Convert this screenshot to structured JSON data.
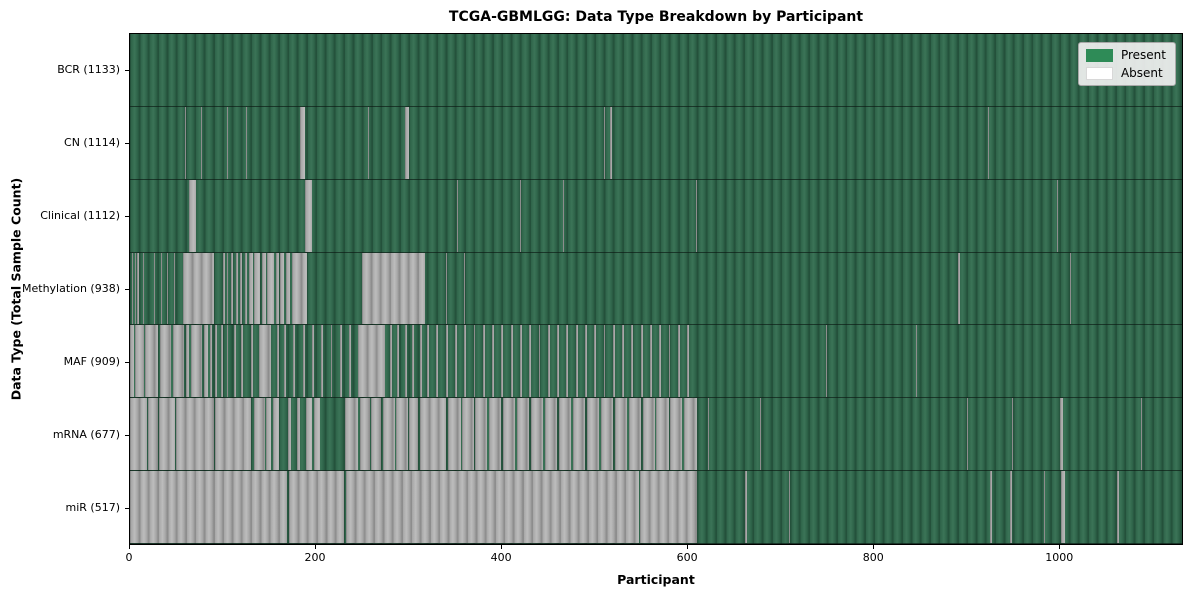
{
  "title": "TCGA-GBMLGG: Data Type Breakdown by Participant",
  "xlabel": "Participant",
  "ylabel": "Data Type (Total Sample Count)",
  "legend": {
    "present_label": "Present",
    "absent_label": "Absent"
  },
  "colors": {
    "present": "#2e6349",
    "present_edge": "#24513b",
    "present_light": "#3b7457",
    "absent": "#a6a6a6",
    "absent_edge": "#8d8d8d",
    "absent_light": "#bdbdbd",
    "legend_present": "#2e8b57",
    "legend_absent": "#ffffff"
  },
  "chart_data": {
    "type": "heatmap",
    "description": "Presence/absence matrix: one column per participant (0-1133), one row per data type. Green = Present, gray/white = Absent. Row labels show total sample count per data type.",
    "x_max": 1133,
    "x_ticks": [
      0,
      200,
      400,
      600,
      800,
      1000
    ],
    "legend_entries": [
      "Present",
      "Absent"
    ],
    "rows": [
      {
        "label": "BCR (1133)",
        "data_type": "BCR",
        "present_count": 1133,
        "absent_segments": []
      },
      {
        "label": "CN (1114)",
        "data_type": "CN",
        "present_count": 1114,
        "absent_segments": [
          [
            59,
            60
          ],
          [
            77,
            78
          ],
          [
            105,
            106
          ],
          [
            125,
            126
          ],
          [
            183,
            188
          ],
          [
            256,
            257
          ],
          [
            296,
            301
          ],
          [
            510,
            512
          ],
          [
            517,
            519
          ],
          [
            924,
            925
          ]
        ]
      },
      {
        "label": "Clinical (1112)",
        "data_type": "Clinical",
        "present_count": 1112,
        "absent_segments": [
          [
            64,
            71
          ],
          [
            188,
            196
          ],
          [
            352,
            353
          ],
          [
            420,
            421
          ],
          [
            466,
            467
          ],
          [
            510,
            511
          ],
          [
            610,
            611
          ],
          [
            998,
            1000
          ]
        ]
      },
      {
        "label": "Methylation (938)",
        "data_type": "Methylation",
        "present_count": 938,
        "absent_segments": [
          [
            2,
            3
          ],
          [
            5,
            6
          ],
          [
            8,
            10
          ],
          [
            14,
            15
          ],
          [
            20,
            21
          ],
          [
            26,
            27
          ],
          [
            33,
            34
          ],
          [
            40,
            41
          ],
          [
            47,
            48
          ],
          [
            57,
            90
          ],
          [
            100,
            102
          ],
          [
            104,
            106
          ],
          [
            109,
            111
          ],
          [
            114,
            116
          ],
          [
            119,
            121
          ],
          [
            124,
            126
          ],
          [
            128,
            132
          ],
          [
            134,
            140
          ],
          [
            142,
            146
          ],
          [
            148,
            155
          ],
          [
            157,
            160
          ],
          [
            162,
            166
          ],
          [
            168,
            172
          ],
          [
            174,
            191
          ],
          [
            250,
            318
          ],
          [
            340,
            341
          ],
          [
            360,
            361
          ],
          [
            892,
            894
          ],
          [
            1012,
            1013
          ]
        ]
      },
      {
        "label": "MAF (909)",
        "data_type": "MAF",
        "present_count": 909,
        "absent_segments": [
          [
            0,
            4
          ],
          [
            5,
            15
          ],
          [
            16,
            30
          ],
          [
            32,
            44
          ],
          [
            46,
            58
          ],
          [
            60,
            64
          ],
          [
            66,
            78
          ],
          [
            80,
            84
          ],
          [
            86,
            88
          ],
          [
            92,
            94
          ],
          [
            98,
            100
          ],
          [
            104,
            106
          ],
          [
            112,
            114
          ],
          [
            120,
            122
          ],
          [
            130,
            132
          ],
          [
            139,
            152
          ],
          [
            158,
            160
          ],
          [
            166,
            168
          ],
          [
            176,
            178
          ],
          [
            186,
            188
          ],
          [
            196,
            198
          ],
          [
            206,
            208
          ],
          [
            216,
            218
          ],
          [
            226,
            228
          ],
          [
            236,
            238
          ],
          [
            246,
            275
          ],
          [
            280,
            282
          ],
          [
            288,
            290
          ],
          [
            296,
            298
          ],
          [
            304,
            306
          ],
          [
            312,
            314
          ],
          [
            320,
            322
          ],
          [
            330,
            332
          ],
          [
            340,
            342
          ],
          [
            350,
            352
          ],
          [
            360,
            362
          ],
          [
            370,
            372
          ],
          [
            380,
            382
          ],
          [
            390,
            392
          ],
          [
            400,
            402
          ],
          [
            410,
            412
          ],
          [
            420,
            422
          ],
          [
            430,
            432
          ],
          [
            440,
            442
          ],
          [
            450,
            452
          ],
          [
            460,
            462
          ],
          [
            470,
            472
          ],
          [
            480,
            482
          ],
          [
            490,
            492
          ],
          [
            500,
            502
          ],
          [
            510,
            512
          ],
          [
            520,
            522
          ],
          [
            530,
            532
          ],
          [
            540,
            542
          ],
          [
            550,
            552
          ],
          [
            560,
            562
          ],
          [
            570,
            572
          ],
          [
            580,
            582
          ],
          [
            590,
            592
          ],
          [
            600,
            602
          ],
          [
            750,
            751
          ],
          [
            846,
            848
          ]
        ]
      },
      {
        "label": "mRNA (677)",
        "data_type": "mRNA",
        "present_count": 677,
        "absent_segments": [
          [
            0,
            18
          ],
          [
            19,
            30
          ],
          [
            31,
            48
          ],
          [
            50,
            90
          ],
          [
            92,
            130
          ],
          [
            134,
            145
          ],
          [
            147,
            152
          ],
          [
            154,
            160
          ],
          [
            170,
            173
          ],
          [
            180,
            183
          ],
          [
            190,
            196
          ],
          [
            198,
            205
          ],
          [
            232,
            246
          ],
          [
            248,
            258
          ],
          [
            260,
            270
          ],
          [
            272,
            285
          ],
          [
            287,
            299
          ],
          [
            301,
            310
          ],
          [
            312,
            340
          ],
          [
            342,
            356
          ],
          [
            358,
            370
          ],
          [
            372,
            385
          ],
          [
            387,
            400
          ],
          [
            402,
            415
          ],
          [
            417,
            430
          ],
          [
            432,
            445
          ],
          [
            447,
            460
          ],
          [
            462,
            475
          ],
          [
            477,
            490
          ],
          [
            492,
            505
          ],
          [
            507,
            520
          ],
          [
            522,
            535
          ],
          [
            537,
            550
          ],
          [
            552,
            565
          ],
          [
            567,
            580
          ],
          [
            582,
            595
          ],
          [
            597,
            611
          ],
          [
            623,
            624
          ],
          [
            679,
            680
          ],
          [
            901,
            902
          ],
          [
            950,
            951
          ],
          [
            1002,
            1005
          ],
          [
            1089,
            1090
          ]
        ]
      },
      {
        "label": "miR (517)",
        "data_type": "miR",
        "present_count": 517,
        "absent_segments": [
          [
            0,
            169
          ],
          [
            171,
            231
          ],
          [
            233,
            548
          ],
          [
            549,
            611
          ],
          [
            662,
            664
          ],
          [
            710,
            711
          ],
          [
            926,
            928
          ],
          [
            948,
            950
          ],
          [
            984,
            986
          ],
          [
            1003,
            1007
          ],
          [
            1063,
            1065
          ]
        ]
      }
    ]
  }
}
